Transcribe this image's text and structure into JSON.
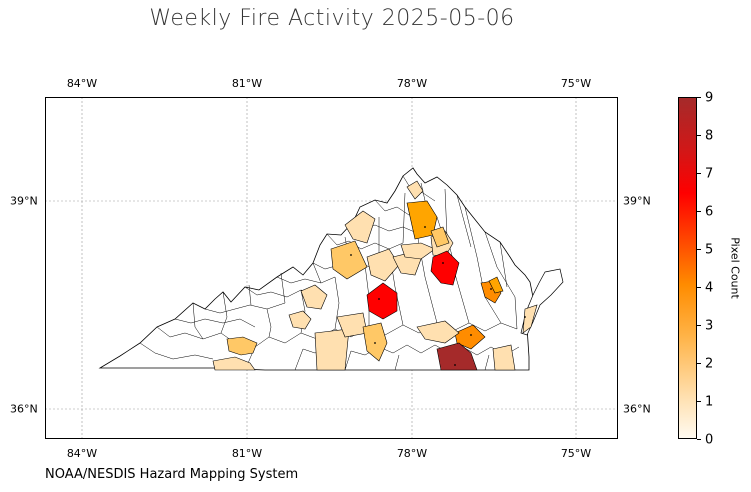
{
  "title": "Weekly Fire Activity 2025-05-06",
  "credit": "NOAA/NESDIS Hazard Mapping System",
  "colorbar": {
    "label": "Pixel Count",
    "ticks": [
      "0",
      "1",
      "2",
      "3",
      "4",
      "5",
      "6",
      "7",
      "8",
      "9"
    ],
    "range": [
      0,
      9
    ],
    "colors": [
      "#fff5e6",
      "#ffe0b0",
      "#ffc866",
      "#ffa500",
      "#ff8c00",
      "#ff4500",
      "#ff0000",
      "#e60000",
      "#c02020",
      "#a52a2a"
    ]
  },
  "axes": {
    "lon_ticks": [
      "84°W",
      "81°W",
      "78°W",
      "75°W"
    ],
    "lat_ticks": [
      "39°N",
      "36°N"
    ]
  },
  "map": {
    "region": "Virginia counties",
    "highlighted_counties": [
      {
        "count": 2,
        "color": "#ffe0b0"
      },
      {
        "count": 3,
        "color": "#ffc866"
      },
      {
        "count": 4,
        "color": "#ffa500"
      },
      {
        "count": 5,
        "color": "#ff8c00"
      },
      {
        "count": 7,
        "color": "#ff0000"
      },
      {
        "count": 9,
        "color": "#a52a2a"
      }
    ]
  }
}
